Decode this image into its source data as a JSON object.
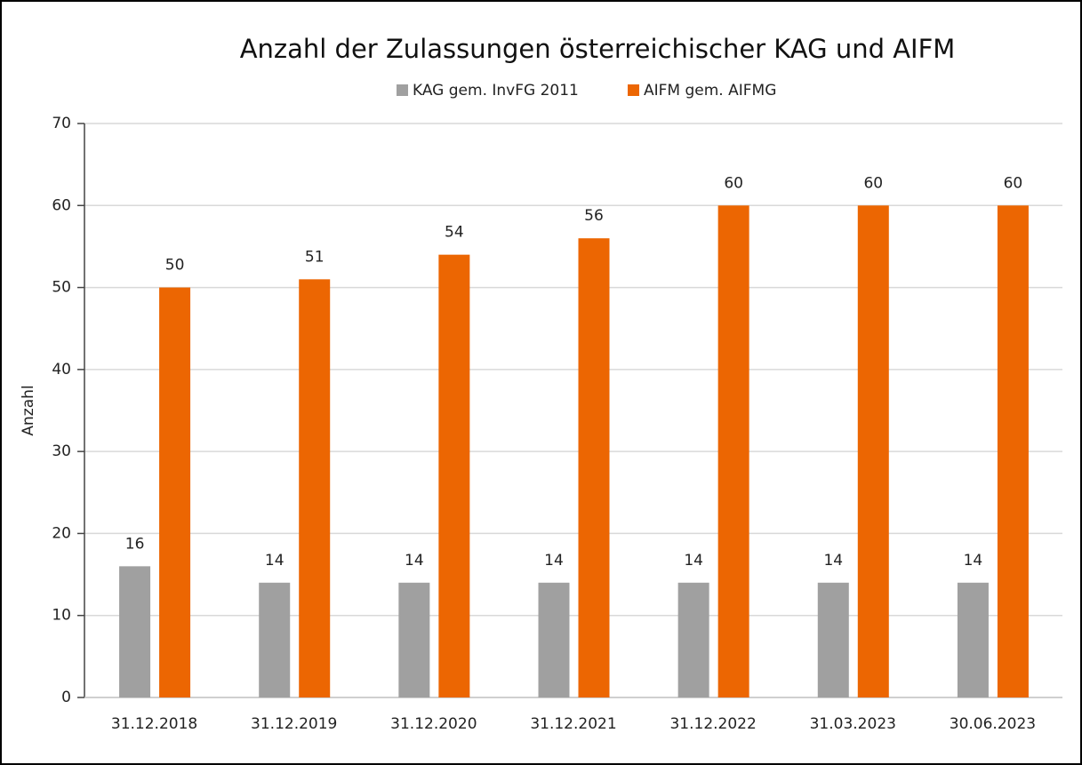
{
  "chart_data": {
    "type": "bar",
    "title": "Anzahl der Zulassungen österreichischer KAG und AIFM",
    "y_label": "Anzahl",
    "categories": [
      "31.12.2018",
      "31.12.2019",
      "31.12.2020",
      "31.12.2021",
      "31.12.2022",
      "31.03.2023",
      "30.06.2023"
    ],
    "series": [
      {
        "name": "KAG gem. InvFG 2011",
        "color": "#a0a0a0",
        "values": [
          16,
          14,
          14,
          14,
          14,
          14,
          14
        ]
      },
      {
        "name": "AIFM gem. AIFMG",
        "color": "#ec6602",
        "values": [
          50,
          51,
          54,
          56,
          60,
          60,
          60
        ]
      }
    ],
    "ylim": [
      0,
      70
    ],
    "yticks": [
      0,
      10,
      20,
      30,
      40,
      50,
      60,
      70
    ],
    "grid": true,
    "legend": "top",
    "data_labels": true
  }
}
